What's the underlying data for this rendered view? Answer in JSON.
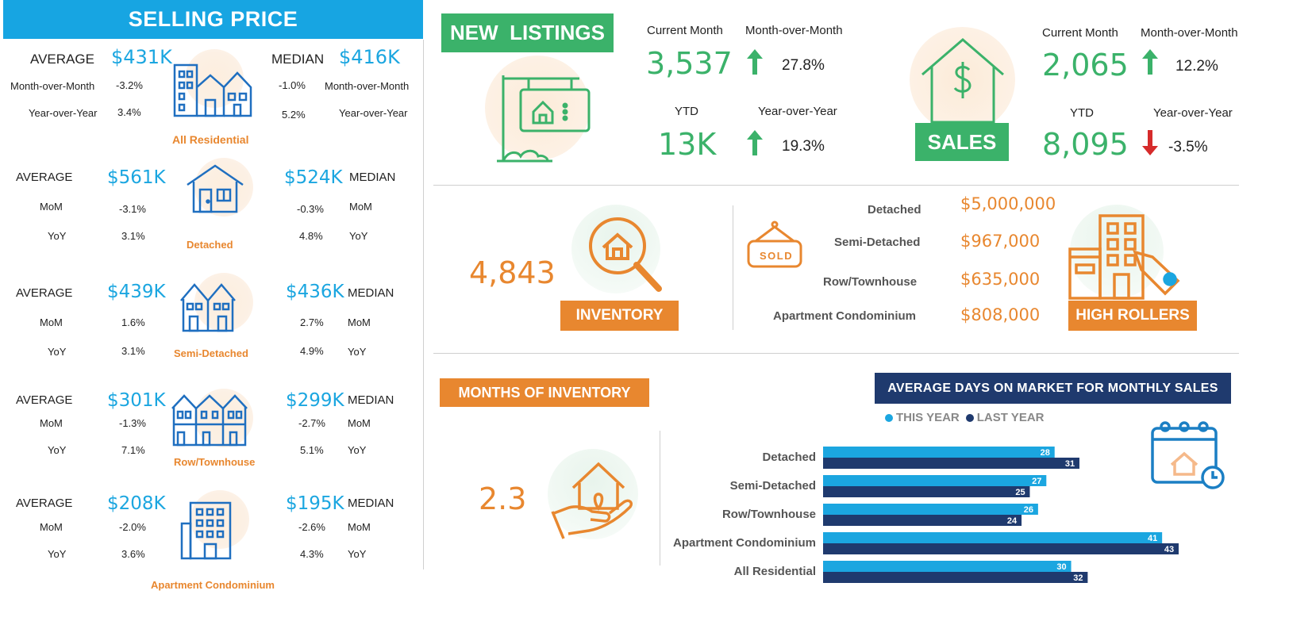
{
  "selling_price": {
    "title": "SELLING PRICE",
    "all_residential": {
      "avg_label": "AVERAGE",
      "avg_value": "$431K",
      "median_label": "MEDIAN",
      "median_value": "$416K",
      "mom_label": "Month-over-Month",
      "yoy_label": "Year-over-Year",
      "avg_mom": "-3.2%",
      "avg_yoy": "3.4%",
      "med_mom": "-1.0%",
      "med_yoy": "5.2%",
      "caption": "All Residential"
    },
    "rows": [
      {
        "caption": "Detached",
        "avg_label": "AVERAGE",
        "avg_value": "$561K",
        "median_value": "$524K",
        "median_label": "MEDIAN",
        "mom_label": "MoM",
        "yoy_label": "YoY",
        "avg_mom": "-3.1%",
        "avg_yoy": "3.1%",
        "med_mom": "-0.3%",
        "med_yoy": "4.8%"
      },
      {
        "caption": "Semi-Detached",
        "avg_label": "AVERAGE",
        "avg_value": "$439K",
        "median_value": "$436K",
        "median_label": "MEDIAN",
        "mom_label": "MoM",
        "yoy_label": "YoY",
        "avg_mom": "1.6%",
        "avg_yoy": "3.1%",
        "med_mom": "2.7%",
        "med_yoy": "4.9%"
      },
      {
        "caption": "Row/Townhouse",
        "avg_label": "AVERAGE",
        "avg_value": "$301K",
        "median_value": "$299K",
        "median_label": "MEDIAN",
        "mom_label": "MoM",
        "yoy_label": "YoY",
        "avg_mom": "-1.3%",
        "avg_yoy": "7.1%",
        "med_mom": "-2.7%",
        "med_yoy": "5.1%"
      },
      {
        "caption": "Apartment Condominium",
        "avg_label": "AVERAGE",
        "avg_value": "$208K",
        "median_value": "$195K",
        "median_label": "MEDIAN",
        "mom_label": "MoM",
        "yoy_label": "YoY",
        "avg_mom": "-2.0%",
        "avg_yoy": "3.6%",
        "med_mom": "-2.6%",
        "med_yoy": "4.3%"
      }
    ]
  },
  "new_listings": {
    "title": "NEW  LISTINGS",
    "current_month_label": "Current Month",
    "current_month_value": "3,537",
    "mom_label": "Month-over-Month",
    "mom_value": "27.8%",
    "ytd_label": "YTD",
    "ytd_value": "13K",
    "yoy_label": "Year-over-Year",
    "yoy_value": "19.3%"
  },
  "sales": {
    "title": "SALES",
    "current_month_label": "Current Month",
    "current_month_value": "2,065",
    "mom_label": "Month-over-Month",
    "mom_value": "12.2%",
    "ytd_label": "YTD",
    "ytd_value": "8,095",
    "yoy_label": "Year-over-Year",
    "yoy_value": "-3.5%"
  },
  "inventory": {
    "title": "INVENTORY",
    "value": "4,843"
  },
  "high_rollers": {
    "title": "HIGH ROLLERS",
    "sold_sign": "SOLD",
    "items": [
      {
        "label": "Detached",
        "value": "$5,000,000"
      },
      {
        "label": "Semi-Detached",
        "value": "$967,000"
      },
      {
        "label": "Row/Townhouse",
        "value": "$635,000"
      },
      {
        "label": "Apartment Condominium",
        "value": "$808,000"
      }
    ]
  },
  "months_of_inventory": {
    "title": "MONTHS OF INVENTORY",
    "value": "2.3"
  },
  "colors": {
    "blue": "#1ba6e0",
    "navy": "#1f3a6e",
    "orange": "#e8872f",
    "green": "#3bb26a",
    "red": "#d62b2b"
  },
  "chart_data": {
    "type": "bar",
    "orientation": "horizontal",
    "title": "AVERAGE DAYS ON MARKET FOR MONTHLY SALES",
    "categories": [
      "Detached",
      "Semi-Detached",
      "Row/Townhouse",
      "Apartment Condominium",
      "All Residential"
    ],
    "series": [
      {
        "name": "THIS YEAR",
        "color": "#1ba6e0",
        "values": [
          28,
          27,
          26,
          41,
          30
        ]
      },
      {
        "name": "LAST YEAR",
        "color": "#1f3a6e",
        "values": [
          31,
          25,
          24,
          43,
          32
        ]
      }
    ],
    "xlim": [
      0,
      43
    ],
    "legend": "top"
  }
}
